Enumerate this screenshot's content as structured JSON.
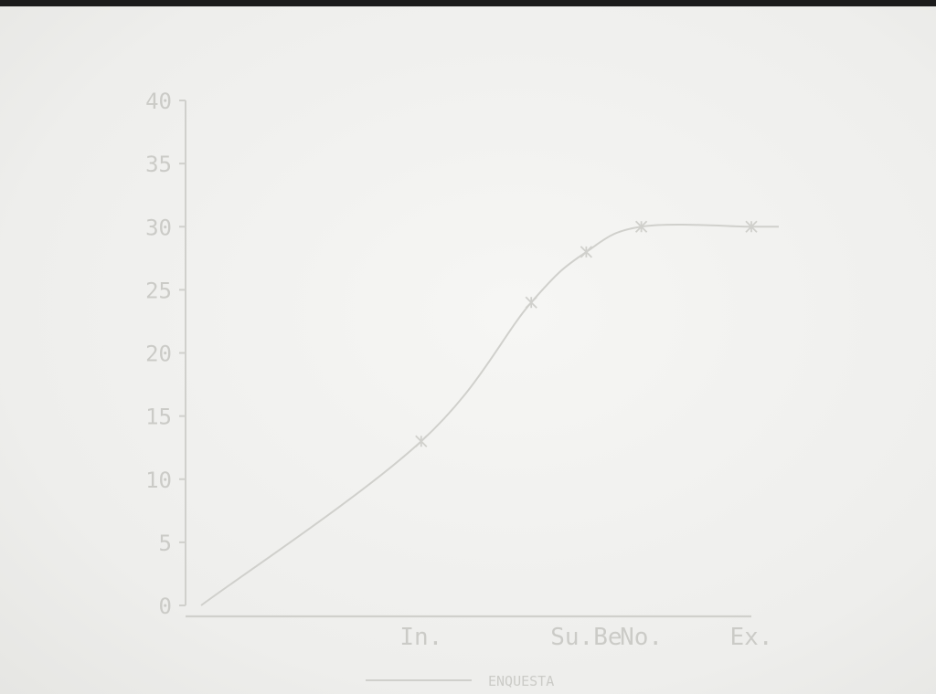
{
  "chart_data": {
    "type": "line",
    "categories": [
      "",
      "In.",
      "Su.Be",
      "No.",
      "Ex."
    ],
    "x": [
      0,
      2,
      3,
      3.5,
      4,
      5
    ],
    "series": [
      {
        "name": "ENQUESTA",
        "values": [
          0,
          13,
          24,
          28,
          30,
          30
        ],
        "marker": "asterisk"
      }
    ],
    "xlabel": "",
    "ylabel": "",
    "ylim": [
      0,
      40
    ],
    "yticks": [
      0,
      5,
      10,
      15,
      20,
      25,
      30,
      35,
      40
    ],
    "xtick_labels": [
      {
        "label": "In.",
        "x": 2
      },
      {
        "label": "Su.Be",
        "x": 3.5
      },
      {
        "label": "No.",
        "x": 4
      },
      {
        "label": "Ex.",
        "x": 5
      }
    ],
    "grid": false,
    "legend_position": "bottom-center",
    "line_color": "#d0d0cc",
    "text_color": "#cbcbc7",
    "background_color": "#f1f1ef"
  }
}
